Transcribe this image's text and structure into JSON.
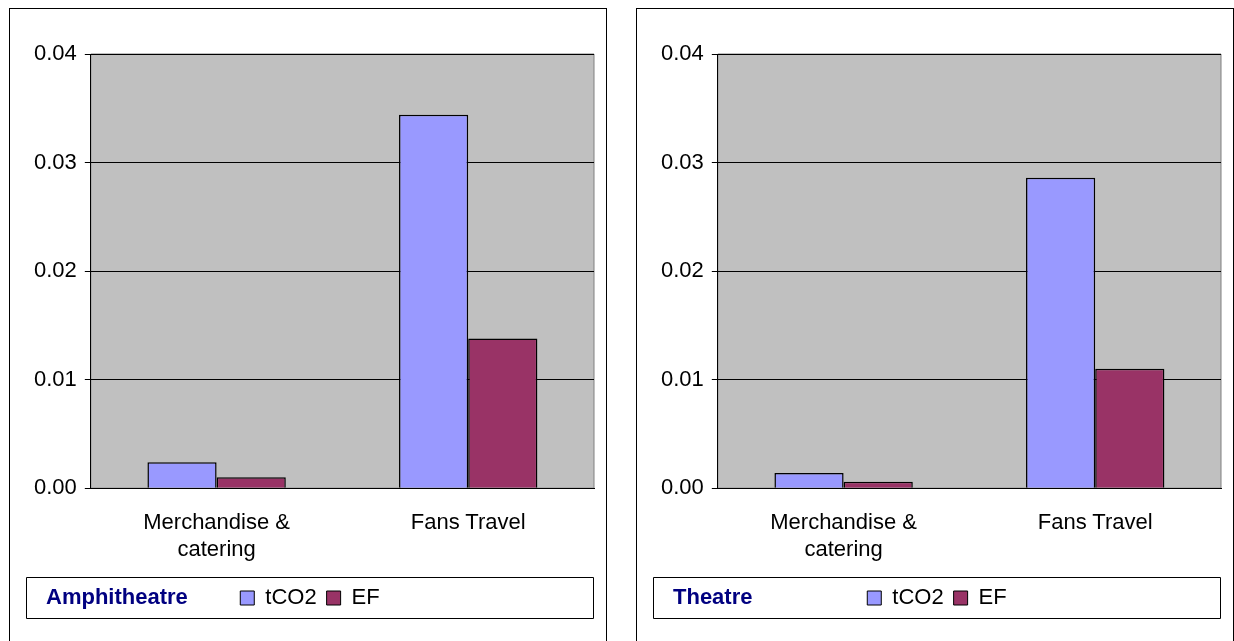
{
  "chart_data": [
    {
      "type": "bar",
      "title": "Amphitheatre",
      "categories": [
        "Merchandise & catering",
        "Fans Travel"
      ],
      "series": [
        {
          "name": "tCO2",
          "color": "#9999ff",
          "values": [
            0.0024,
            0.0344
          ]
        },
        {
          "name": "EF",
          "color": "#993366",
          "values": [
            0.001,
            0.0138
          ]
        }
      ],
      "ylim": [
        0,
        0.04
      ],
      "yticks": [
        {
          "value": 0,
          "label": "0.00"
        },
        {
          "value": 0.01,
          "label": "0.01"
        },
        {
          "value": 0.02,
          "label": "0.02"
        },
        {
          "value": 0.03,
          "label": "0.03"
        },
        {
          "value": 0.04,
          "label": "0.04"
        }
      ],
      "grid": "y",
      "legend": "bottom"
    },
    {
      "type": "bar",
      "title": "Theatre",
      "categories": [
        "Merchandise & catering",
        "Fans Travel"
      ],
      "series": [
        {
          "name": "tCO2",
          "color": "#9999ff",
          "values": [
            0.0014,
            0.0286
          ]
        },
        {
          "name": "EF",
          "color": "#993366",
          "values": [
            0.0006,
            0.011
          ]
        }
      ],
      "ylim": [
        0,
        0.04
      ],
      "yticks": [
        {
          "value": 0,
          "label": "0.00"
        },
        {
          "value": 0.01,
          "label": "0.01"
        },
        {
          "value": 0.02,
          "label": "0.02"
        },
        {
          "value": 0.03,
          "label": "0.03"
        },
        {
          "value": 0.04,
          "label": "0.04"
        }
      ],
      "grid": "y",
      "legend": "bottom"
    }
  ]
}
